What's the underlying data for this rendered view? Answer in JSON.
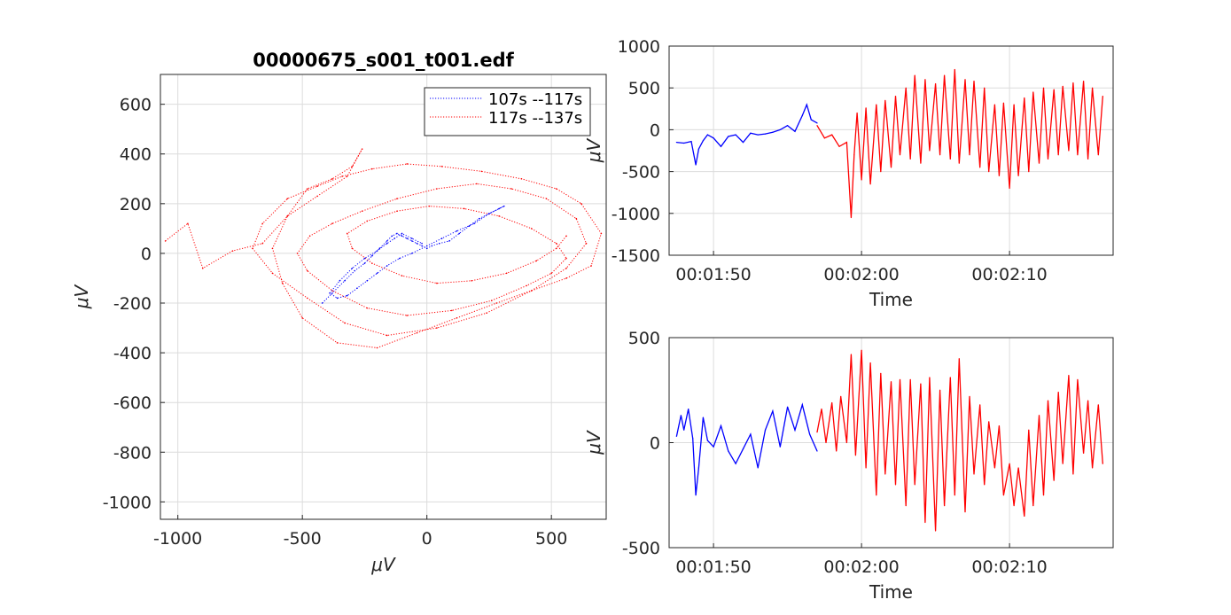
{
  "figure": {
    "background": "#ffffff",
    "colors": {
      "segment_a": "#0000ff",
      "segment_b": "#ff0000",
      "grid": "#dcdcdc",
      "axis": "#262626"
    }
  },
  "chart_data": [
    {
      "id": "phase",
      "type": "scatter",
      "style": "dotted-line",
      "title": "00000675_s001_t001.edf",
      "xlabel": "μV",
      "ylabel": "μV",
      "xlim": [
        -1070,
        720
      ],
      "ylim": [
        -1070,
        720
      ],
      "xticks": [
        -1000,
        -500,
        0,
        500
      ],
      "yticks": [
        -1000,
        -800,
        -600,
        -400,
        -200,
        0,
        200,
        400,
        600
      ],
      "grid": true,
      "legend": {
        "location": "top-right",
        "entries": [
          "107s --117s",
          "117s --137s"
        ]
      },
      "series": [
        {
          "name": "107s --117s",
          "color": "#0000ff",
          "x": [
            -420,
            -380,
            -330,
            -290,
            -250,
            -220,
            -190,
            -160,
            -140,
            -120,
            -100,
            -80,
            -60,
            -40,
            -20,
            0,
            20,
            50,
            90,
            130,
            170,
            210,
            250,
            290,
            310,
            250,
            190,
            120,
            60,
            0,
            -60,
            -110,
            -160,
            -200,
            -240,
            -280,
            -320,
            -360,
            -390,
            -350,
            -300,
            -250,
            -200,
            -160,
            -130,
            -100,
            -60,
            -20
          ],
          "y": [
            -200,
            -160,
            -110,
            -70,
            -40,
            -10,
            20,
            50,
            70,
            80,
            70,
            60,
            50,
            40,
            30,
            20,
            30,
            40,
            50,
            80,
            110,
            140,
            160,
            180,
            190,
            160,
            120,
            90,
            60,
            30,
            0,
            -20,
            -50,
            -80,
            -110,
            -140,
            -170,
            -180,
            -160,
            -110,
            -60,
            -20,
            10,
            40,
            60,
            80,
            60,
            40
          ]
        },
        {
          "name": "117s --137s",
          "color": "#ff0000",
          "x": [
            -1050,
            -960,
            -900,
            -780,
            -660,
            -560,
            -480,
            -380,
            -300,
            -260,
            -320,
            -440,
            -560,
            -620,
            -580,
            -500,
            -360,
            -200,
            -40,
            120,
            280,
            420,
            560,
            660,
            700,
            620,
            520,
            380,
            220,
            60,
            -80,
            -220,
            -340,
            -440,
            -560,
            -660,
            -700,
            -620,
            -480,
            -330,
            -160,
            40,
            240,
            420,
            560,
            640,
            600,
            480,
            340,
            200,
            40,
            -120,
            -260,
            -380,
            -470,
            -520,
            -480,
            -380,
            -240,
            -80,
            100,
            260,
            400,
            500,
            560,
            520,
            420,
            290,
            150,
            10,
            -120,
            -240,
            -320,
            -300,
            -220,
            -100,
            40,
            180,
            320,
            440,
            520,
            560
          ],
          "y": [
            50,
            120,
            -60,
            10,
            40,
            150,
            260,
            300,
            350,
            420,
            310,
            230,
            150,
            20,
            -120,
            -260,
            -360,
            -380,
            -320,
            -260,
            -200,
            -150,
            -100,
            -50,
            80,
            200,
            260,
            300,
            330,
            350,
            360,
            340,
            310,
            270,
            220,
            120,
            20,
            -80,
            -180,
            -280,
            -330,
            -300,
            -240,
            -150,
            -60,
            40,
            140,
            220,
            260,
            280,
            260,
            220,
            170,
            120,
            70,
            0,
            -70,
            -150,
            -220,
            -250,
            -230,
            -190,
            -130,
            -80,
            -20,
            40,
            100,
            150,
            180,
            190,
            170,
            130,
            80,
            20,
            -40,
            -90,
            -120,
            -110,
            -80,
            -30,
            20,
            70
          ]
        }
      ]
    },
    {
      "id": "ts1",
      "type": "line",
      "xlabel": "Time",
      "ylabel": "μV",
      "xlim": [
        107,
        137
      ],
      "ylim": [
        -1500,
        1000
      ],
      "xtick_values": [
        110,
        120,
        130
      ],
      "xticks": [
        "00:01:50",
        "00:02:00",
        "00:02:10"
      ],
      "yticks": [
        -1500,
        -1000,
        -500,
        0,
        500,
        1000
      ],
      "grid": true,
      "split_time": 117,
      "series": [
        {
          "name": "107s --117s",
          "color": "#0000ff",
          "t": [
            107.5,
            108,
            108.5,
            108.8,
            109,
            109.3,
            109.6,
            110,
            110.5,
            111,
            111.5,
            112,
            112.5,
            113,
            113.5,
            114,
            114.5,
            115,
            115.5,
            116,
            116.3,
            116.6,
            117
          ],
          "values": [
            -150,
            -160,
            -140,
            -420,
            -230,
            -130,
            -60,
            -100,
            -200,
            -80,
            -60,
            -150,
            -40,
            -60,
            -50,
            -30,
            0,
            50,
            -20,
            170,
            300,
            120,
            80
          ]
        },
        {
          "name": "117s --137s",
          "color": "#ff0000",
          "t": [
            117,
            117.5,
            118,
            118.5,
            119,
            119.3,
            119.5,
            119.7,
            120,
            120.3,
            120.6,
            121,
            121.3,
            121.6,
            122,
            122.3,
            122.6,
            123,
            123.3,
            123.6,
            124,
            124.3,
            124.6,
            125,
            125.3,
            125.6,
            126,
            126.3,
            126.6,
            127,
            127.3,
            127.6,
            128,
            128.3,
            128.6,
            129,
            129.3,
            129.6,
            130,
            130.3,
            130.6,
            131,
            131.3,
            131.6,
            132,
            132.3,
            132.6,
            133,
            133.3,
            133.6,
            134,
            134.3,
            134.6,
            135,
            135.3,
            135.6,
            136,
            136.3
          ],
          "values": [
            50,
            -100,
            -60,
            -200,
            -150,
            -1050,
            -300,
            200,
            -600,
            260,
            -650,
            300,
            -500,
            350,
            -450,
            400,
            -300,
            500,
            -350,
            650,
            -400,
            600,
            -250,
            550,
            -300,
            650,
            -350,
            720,
            -400,
            600,
            -300,
            580,
            -450,
            500,
            -500,
            300,
            -550,
            320,
            -700,
            300,
            -550,
            380,
            -500,
            450,
            -400,
            500,
            -350,
            480,
            -300,
            520,
            -250,
            560,
            -300,
            580,
            -350,
            500,
            -300,
            400
          ]
        }
      ]
    },
    {
      "id": "ts2",
      "type": "line",
      "xlabel": "Time",
      "ylabel": "μV",
      "xlim": [
        107,
        137
      ],
      "ylim": [
        -500,
        500
      ],
      "xtick_values": [
        110,
        120,
        130
      ],
      "xticks": [
        "00:01:50",
        "00:02:00",
        "00:02:10"
      ],
      "yticks": [
        -500,
        0,
        500
      ],
      "grid": true,
      "split_time": 117,
      "series": [
        {
          "name": "107s --117s",
          "color": "#0000ff",
          "t": [
            107.5,
            107.8,
            108,
            108.3,
            108.6,
            108.8,
            109,
            109.3,
            109.6,
            110,
            110.5,
            111,
            111.5,
            112,
            112.5,
            113,
            113.5,
            114,
            114.5,
            115,
            115.5,
            116,
            116.5,
            117
          ],
          "values": [
            30,
            130,
            60,
            160,
            20,
            -250,
            -120,
            120,
            10,
            -20,
            80,
            -40,
            -100,
            -30,
            40,
            -120,
            60,
            150,
            -20,
            170,
            60,
            180,
            40,
            -40
          ],
          "comment": "blue trace"
        },
        {
          "name": "117s --137s",
          "color": "#ff0000",
          "t": [
            117,
            117.3,
            117.6,
            118,
            118.3,
            118.6,
            119,
            119.3,
            119.6,
            120,
            120.3,
            120.6,
            121,
            121.3,
            121.6,
            122,
            122.3,
            122.6,
            123,
            123.3,
            123.6,
            124,
            124.3,
            124.6,
            125,
            125.3,
            125.6,
            126,
            126.3,
            126.6,
            127,
            127.3,
            127.6,
            128,
            128.3,
            128.6,
            129,
            129.3,
            129.6,
            130,
            130.3,
            130.6,
            131,
            131.3,
            131.6,
            132,
            132.3,
            132.6,
            133,
            133.3,
            133.6,
            134,
            134.3,
            134.6,
            135,
            135.3,
            135.6,
            136,
            136.3
          ],
          "values": [
            50,
            160,
            0,
            190,
            -40,
            220,
            0,
            420,
            -60,
            440,
            -120,
            380,
            -250,
            330,
            -150,
            290,
            -200,
            300,
            -300,
            300,
            -200,
            280,
            -380,
            310,
            -420,
            250,
            -300,
            310,
            -250,
            400,
            -330,
            220,
            -150,
            180,
            -200,
            100,
            -120,
            80,
            -250,
            -100,
            -300,
            -120,
            -350,
            60,
            -300,
            130,
            -250,
            200,
            -180,
            240,
            -100,
            320,
            -150,
            300,
            -50,
            200,
            -120,
            180,
            -100
          ],
          "comment": "red trace"
        }
      ]
    }
  ]
}
